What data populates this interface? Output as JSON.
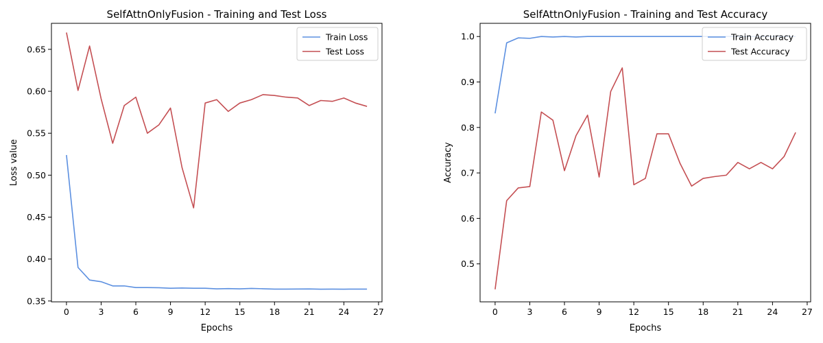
{
  "chart_data": [
    {
      "type": "line",
      "title": "SelfAttnOnlyFusion - Training and Test Loss",
      "xlabel": "Epochs",
      "ylabel": "Loss value",
      "xlim": [
        -1.3,
        27.3
      ],
      "ylim": [
        0.349,
        0.681
      ],
      "xticks": [
        0,
        3,
        6,
        9,
        12,
        15,
        18,
        21,
        24,
        27
      ],
      "yticks": [
        0.35,
        0.4,
        0.45,
        0.5,
        0.55,
        0.6,
        0.65
      ],
      "yticklabels": [
        "0.35",
        "0.40",
        "0.45",
        "0.50",
        "0.55",
        "0.60",
        "0.65"
      ],
      "legend_position": "upper-right",
      "x": [
        0,
        1,
        2,
        3,
        4,
        5,
        6,
        7,
        8,
        9,
        10,
        11,
        12,
        13,
        14,
        15,
        16,
        17,
        18,
        19,
        20,
        21,
        22,
        23,
        24,
        25,
        26
      ],
      "series": [
        {
          "name": "Train Loss",
          "color": "#5b8fe0",
          "values": [
            0.524,
            0.39,
            0.375,
            0.373,
            0.368,
            0.368,
            0.366,
            0.366,
            0.3658,
            0.3652,
            0.3655,
            0.3652,
            0.3652,
            0.3645,
            0.3648,
            0.3645,
            0.365,
            0.3646,
            0.3642,
            0.3642,
            0.3643,
            0.3644,
            0.3641,
            0.3642,
            0.3641,
            0.3642,
            0.3642
          ]
        },
        {
          "name": "Test Loss",
          "color": "#c44e52",
          "values": [
            0.67,
            0.601,
            0.654,
            0.591,
            0.538,
            0.583,
            0.593,
            0.55,
            0.56,
            0.58,
            0.509,
            0.461,
            0.586,
            0.59,
            0.576,
            0.586,
            0.59,
            0.596,
            0.595,
            0.593,
            0.592,
            0.583,
            0.589,
            0.588,
            0.592,
            0.586,
            0.582
          ]
        }
      ]
    },
    {
      "type": "line",
      "title": "SelfAttnOnlyFusion - Training and Test Accuracy",
      "xlabel": "Epochs",
      "ylabel": "Accuracy",
      "xlim": [
        -1.3,
        27.3
      ],
      "ylim": [
        0.4165,
        1.029
      ],
      "xticks": [
        0,
        3,
        6,
        9,
        12,
        15,
        18,
        21,
        24,
        27
      ],
      "yticks": [
        0.5,
        0.6,
        0.7,
        0.8,
        0.9,
        1.0
      ],
      "yticklabels": [
        "0.5",
        "0.6",
        "0.7",
        "0.8",
        "0.9",
        "1.0"
      ],
      "legend_position": "upper-right",
      "x": [
        0,
        1,
        2,
        3,
        4,
        5,
        6,
        7,
        8,
        9,
        10,
        11,
        12,
        13,
        14,
        15,
        16,
        17,
        18,
        19,
        20,
        21,
        22,
        23,
        24,
        25,
        26
      ],
      "series": [
        {
          "name": "Train Accuracy",
          "color": "#5b8fe0",
          "values": [
            0.831,
            0.986,
            0.997,
            0.996,
            1.0,
            0.999,
            1.0,
            0.999,
            1.0,
            1.0,
            1.0,
            1.0,
            1.0,
            1.0,
            1.0,
            1.0,
            1.0,
            1.0,
            1.0,
            1.0,
            1.0,
            1.0,
            1.0,
            1.0,
            1.0,
            1.0,
            1.0
          ]
        },
        {
          "name": "Test Accuracy",
          "color": "#c44e52",
          "values": [
            0.444,
            0.639,
            0.667,
            0.67,
            0.834,
            0.816,
            0.705,
            0.782,
            0.827,
            0.691,
            0.879,
            0.931,
            0.674,
            0.688,
            0.786,
            0.786,
            0.721,
            0.671,
            0.688,
            0.692,
            0.695,
            0.723,
            0.709,
            0.723,
            0.709,
            0.736,
            0.789
          ]
        }
      ]
    }
  ]
}
